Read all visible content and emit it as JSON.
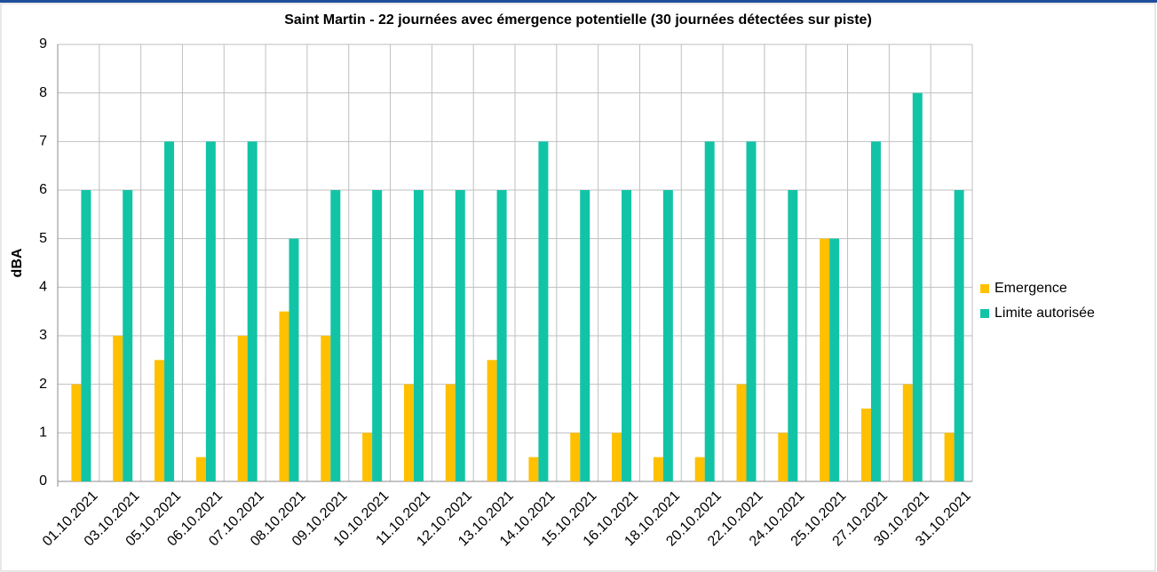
{
  "chart_data": {
    "type": "bar",
    "title": "Saint Martin - 22 journées avec émergence potentielle (30 journées détectées sur piste)",
    "y_label": "dBA",
    "categories": [
      "01.10.2021",
      "03.10.2021",
      "05.10.2021",
      "06.10.2021",
      "07.10.2021",
      "08.10.2021",
      "09.10.2021",
      "10.10.2021",
      "11.10.2021",
      "12.10.2021",
      "13.10.2021",
      "14.10.2021",
      "15.10.2021",
      "16.10.2021",
      "18.10.2021",
      "20.10.2021",
      "22.10.2021",
      "24.10.2021",
      "25.10.2021",
      "27.10.2021",
      "30.10.2021",
      "31.10.2021"
    ],
    "series": [
      {
        "name": "Emergence",
        "color": "#ffc000",
        "values": [
          2,
          3,
          2.5,
          0.5,
          3,
          3.5,
          3,
          1,
          2,
          2,
          2.5,
          0.5,
          1,
          1,
          0.5,
          0.5,
          2,
          1,
          5,
          1.5,
          2,
          1
        ]
      },
      {
        "name": "Limite autorisée",
        "color": "#12c4a6",
        "values": [
          6,
          6,
          7,
          7,
          7,
          5,
          6,
          6,
          6,
          6,
          6,
          7,
          6,
          6,
          6,
          7,
          7,
          6,
          5,
          7,
          8,
          6
        ]
      }
    ],
    "ylim": [
      0,
      9
    ],
    "yticks": [
      0,
      1,
      2,
      3,
      4,
      5,
      6,
      7,
      8,
      9
    ],
    "grid": true,
    "legend": "right"
  }
}
